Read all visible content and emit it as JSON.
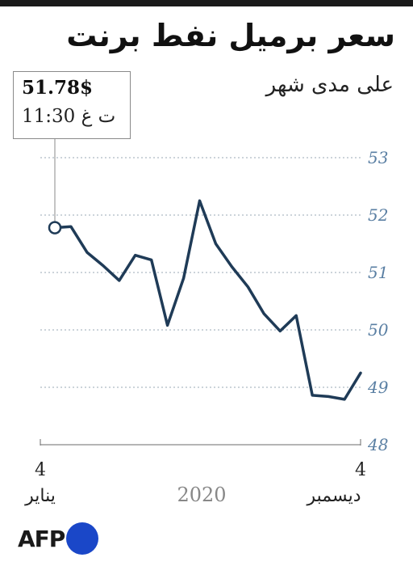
{
  "header": {
    "title": "سعر برميل نفط برنت",
    "subtitle": "على مدى شهر"
  },
  "callout": {
    "price": "51.78$",
    "time": "11:30 ت غ"
  },
  "chart_data": {
    "type": "line",
    "title": "سعر برميل نفط برنت",
    "subtitle": "على مدى شهر",
    "ylim": [
      48,
      53
    ],
    "yticks": [
      48,
      49,
      50,
      51,
      52,
      53
    ],
    "grid": true,
    "series": [
      {
        "values": [
          51.78,
          51.8,
          51.35,
          51.12,
          50.86,
          51.3,
          51.22,
          50.08,
          50.9,
          52.25,
          51.5,
          51.1,
          50.75,
          50.28,
          49.98,
          50.25,
          48.86,
          48.84,
          48.79,
          49.25
        ],
        "color": "#1f3b57"
      }
    ],
    "x_labels": {
      "start_day": "4",
      "start_month": "يناير",
      "year": "2020",
      "end_day": "4",
      "end_month": "ديسمبر"
    },
    "marker": {
      "index": 0,
      "value": 51.78
    }
  },
  "logo": {
    "text": "AFP",
    "color": "#1a47c8"
  }
}
